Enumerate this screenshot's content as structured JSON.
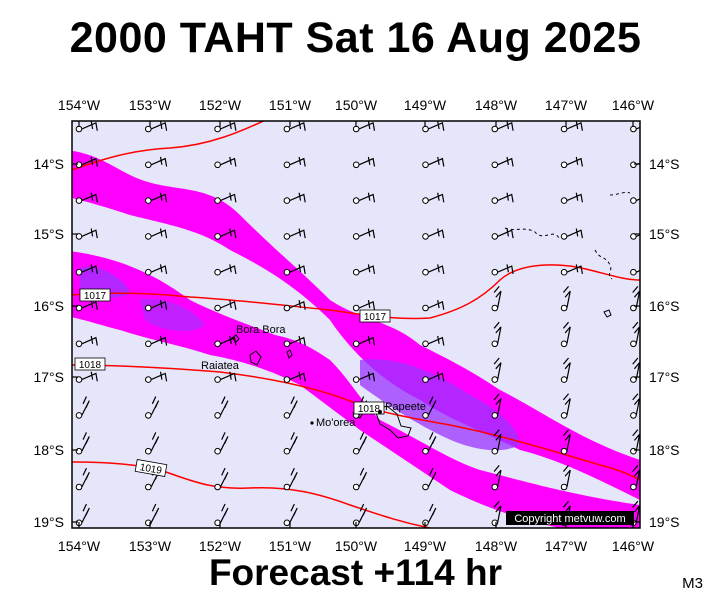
{
  "title": "2000 TAHT Sat 16 Aug 2025",
  "subtitle": "Forecast +114 hr",
  "code_label": "M3",
  "copyright": "Copyright metvuw.com",
  "axes": {
    "lon_labels": [
      "154°W",
      "153°W",
      "152°W",
      "151°W",
      "150°W",
      "149°W",
      "148°W",
      "147°W",
      "146°W"
    ],
    "lat_labels": [
      "14°S",
      "15°S",
      "16°S",
      "17°S",
      "18°S",
      "19°S"
    ]
  },
  "places": [
    {
      "name": "Bora Bora"
    },
    {
      "name": "Raiatea"
    },
    {
      "name": "Mo'orea"
    },
    {
      "name": "Papeete"
    }
  ],
  "isobars": [
    {
      "label": "1017"
    },
    {
      "label": "1017"
    },
    {
      "label": "1018"
    },
    {
      "label": "1018"
    },
    {
      "label": "1019"
    }
  ],
  "colors": {
    "sea": "#e6e6fa",
    "rain_light": "#ff00ff",
    "rain_heavy": "#9a33ff",
    "isobar": "#ff0000"
  }
}
